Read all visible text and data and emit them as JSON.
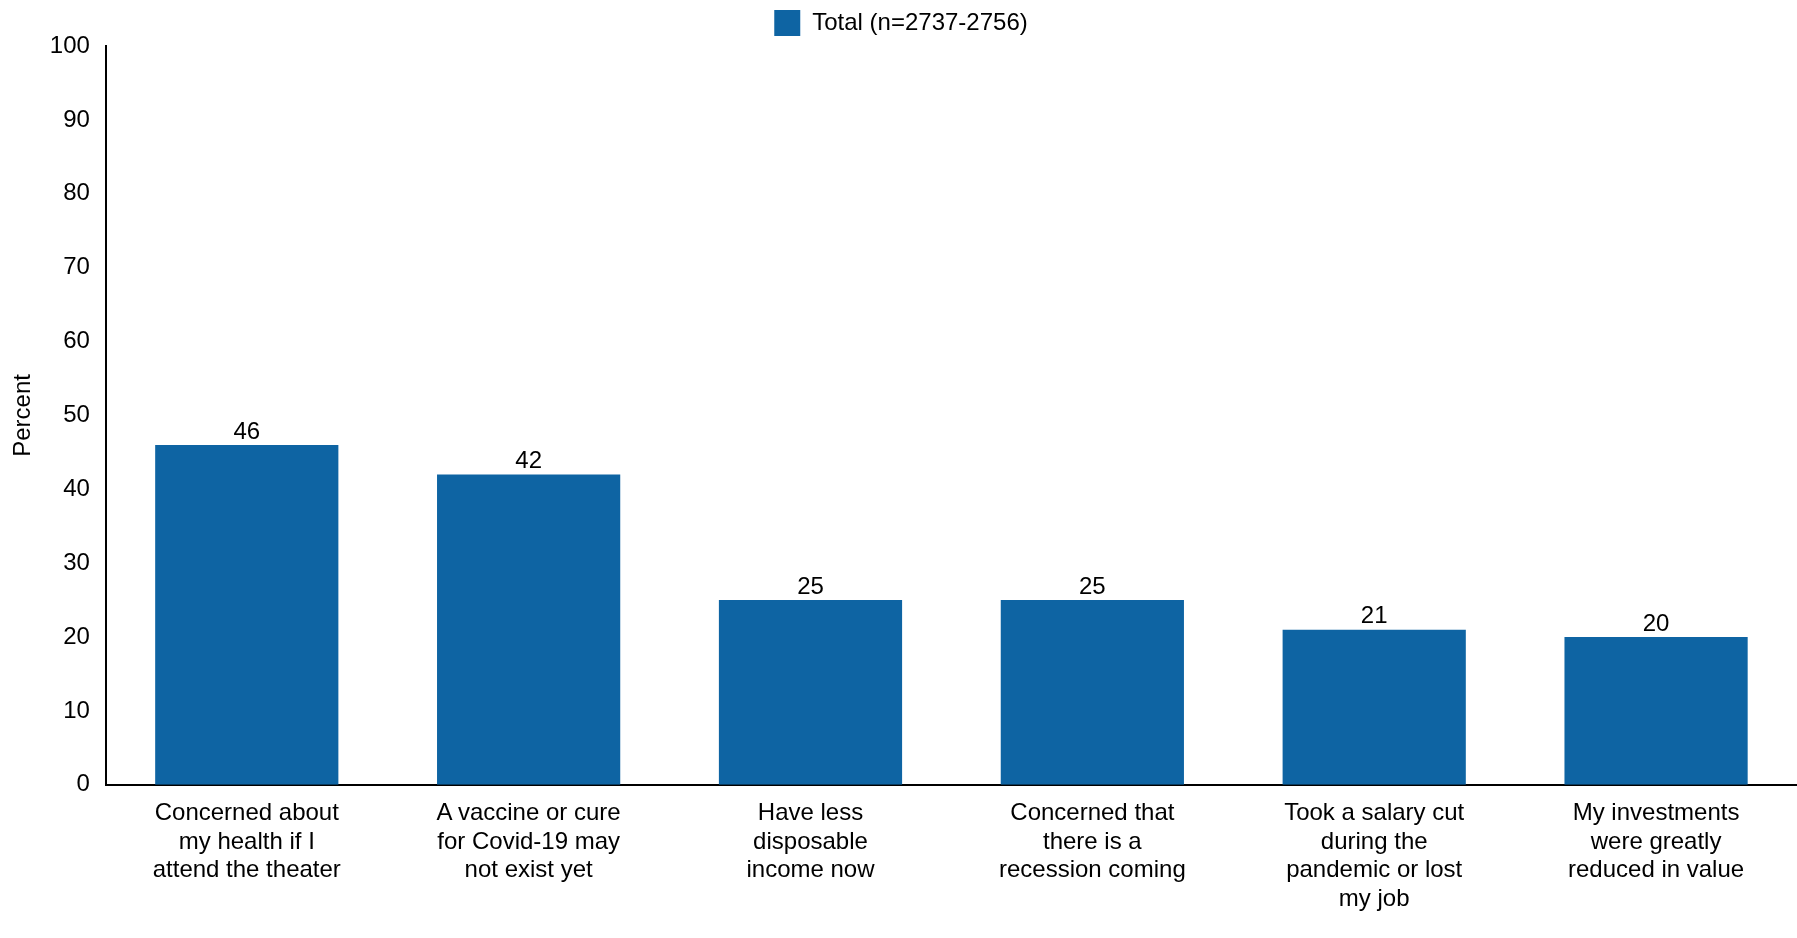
{
  "chart_data": {
    "type": "bar",
    "ylabel": "Percent",
    "categories": [
      "Concerned about my health if I attend the theater",
      "A vaccine or cure for Covid-19 may not exist yet",
      "Have less disposable income now",
      "Concerned that there is a recession coming",
      "Took a salary cut during the pandemic or lost my job",
      "My investments were greatly reduced in value"
    ],
    "series": [
      {
        "name": "Total (n=2737-2756)",
        "color": "#0e64a3",
        "values": [
          46,
          42,
          25,
          25,
          21,
          20
        ]
      }
    ],
    "ylim": [
      0,
      100
    ],
    "yticks": [
      0,
      10,
      20,
      30,
      40,
      50,
      60,
      70,
      80,
      90,
      100
    ],
    "data_labels": true,
    "grid": false,
    "legend": "top"
  }
}
